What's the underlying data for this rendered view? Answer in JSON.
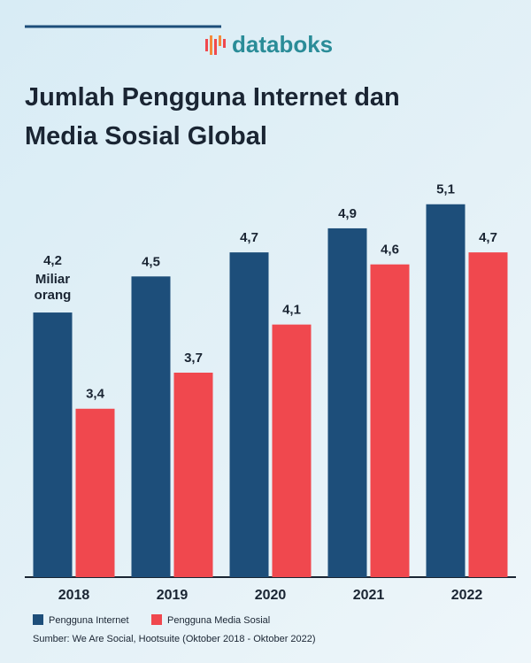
{
  "chart_data": {
    "type": "bar",
    "logo": "databoks",
    "title": "Jumlah Pengguna Internet dan Media Sosial Global",
    "annotation": "Miliar orang",
    "categories": [
      "2018",
      "2019",
      "2020",
      "2021",
      "2022"
    ],
    "series": [
      {
        "name": "Pengguna Internet",
        "color": "#1d4e7a",
        "values": [
          4.2,
          4.5,
          4.7,
          4.9,
          5.1
        ],
        "value_labels": [
          "4,2",
          "4,5",
          "4,7",
          "4,9",
          "5,1"
        ]
      },
      {
        "name": "Pengguna Media Sosial",
        "color": "#f0484e",
        "values": [
          3.4,
          3.7,
          4.1,
          4.6,
          4.7
        ],
        "value_labels": [
          "3,4",
          "3,7",
          "4,1",
          "4,6",
          "4,7"
        ]
      }
    ],
    "ylim": [
      2,
      5.4
    ],
    "source": "Sumber: We Are Social, Hootsuite (Oktober 2018 - Oktober 2022)"
  }
}
